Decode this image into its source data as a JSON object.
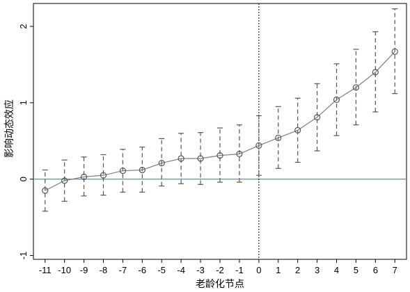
{
  "chart_data": {
    "type": "line",
    "title": "",
    "xlabel": "老龄化节点",
    "ylabel": "影响动态效应",
    "x": [
      -11,
      -10,
      -9,
      -8,
      -7,
      -6,
      -5,
      -4,
      -3,
      -2,
      -1,
      0,
      1,
      2,
      3,
      4,
      5,
      6,
      7
    ],
    "xticks": [
      "-11",
      "-10",
      "-9",
      "-8",
      "-7",
      "-6",
      "-5",
      "-4",
      "-3",
      "-2",
      "-1",
      "0",
      "1",
      "2",
      "3",
      "4",
      "5",
      "6",
      "7"
    ],
    "yticks": [
      -1,
      0,
      1,
      2
    ],
    "ylim": [
      -1.05,
      2.3
    ],
    "xlim": [
      -11.6,
      7.6
    ],
    "grid": false,
    "series": [
      {
        "name": "",
        "values": [
          -0.15,
          -0.02,
          0.03,
          0.05,
          0.11,
          0.12,
          0.21,
          0.27,
          0.27,
          0.31,
          0.33,
          0.44,
          0.54,
          0.64,
          0.81,
          1.04,
          1.2,
          1.4,
          1.67
        ],
        "ci_low": [
          -0.42,
          -0.29,
          -0.22,
          -0.21,
          -0.17,
          -0.17,
          -0.09,
          -0.06,
          -0.07,
          -0.04,
          -0.04,
          0.05,
          0.14,
          0.22,
          0.37,
          0.57,
          0.71,
          0.88,
          1.12
        ],
        "ci_high": [
          0.12,
          0.25,
          0.29,
          0.32,
          0.39,
          0.42,
          0.53,
          0.6,
          0.61,
          0.67,
          0.71,
          0.83,
          0.95,
          1.06,
          1.25,
          1.51,
          1.7,
          1.93,
          2.23
        ]
      }
    ],
    "reference_lines": {
      "horizontal_y": 0,
      "vertical_x": 0
    },
    "colors": {
      "line": "#7f7f7f",
      "marker": "#555555",
      "ci": "#555555",
      "zero_line": "#6b8ea8",
      "vline": "#000000"
    }
  }
}
